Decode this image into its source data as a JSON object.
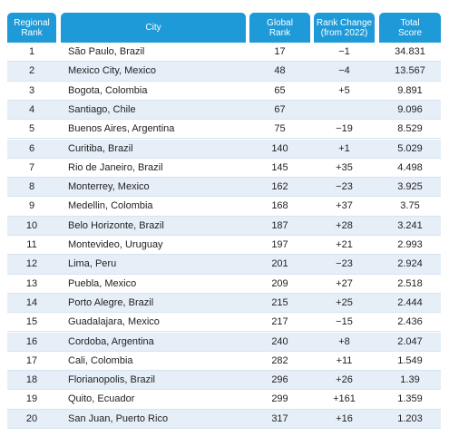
{
  "table": {
    "headers": [
      [
        "Regional",
        "Rank"
      ],
      [
        "City"
      ],
      [
        "Global",
        "Rank"
      ],
      [
        "Rank Change",
        "(from 2022)"
      ],
      [
        "Total",
        "Score"
      ]
    ],
    "rows": [
      [
        1,
        "São Paulo, Brazil",
        17,
        "−1",
        34.831
      ],
      [
        2,
        "Mexico City, Mexico",
        48,
        "−4",
        13.567
      ],
      [
        3,
        "Bogota, Colombia",
        65,
        "+5",
        9.891
      ],
      [
        4,
        "Santiago, Chile",
        67,
        null,
        9.096
      ],
      [
        5,
        "Buenos Aires, Argentina",
        75,
        "−19",
        8.529
      ],
      [
        6,
        "Curitiba, Brazil",
        140,
        "+1",
        5.029
      ],
      [
        7,
        "Rio de Janeiro, Brazil",
        145,
        "+35",
        4.498
      ],
      [
        8,
        "Monterrey, Mexico",
        162,
        "−23",
        3.925
      ],
      [
        9,
        "Medellin, Colombia",
        168,
        "+37",
        3.75
      ],
      [
        10,
        "Belo Horizonte, Brazil",
        187,
        "+28",
        3.241
      ],
      [
        11,
        "Montevideo, Uruguay",
        197,
        "+21",
        2.993
      ],
      [
        12,
        "Lima, Peru",
        201,
        "−23",
        2.924
      ],
      [
        13,
        "Puebla, Mexico",
        209,
        "+27",
        2.518
      ],
      [
        14,
        "Porto Alegre, Brazil",
        215,
        "+25",
        2.444
      ],
      [
        15,
        "Guadalajara, Mexico",
        217,
        "−15",
        2.436
      ],
      [
        16,
        "Cordoba, Argentina",
        240,
        "+8",
        2.047
      ],
      [
        17,
        "Cali, Colombia",
        282,
        "+11",
        1.549
      ],
      [
        18,
        "Florianopolis, Brazil",
        296,
        "+26",
        1.39
      ],
      [
        19,
        "Quito, Ecuador",
        299,
        "+161",
        1.359
      ],
      [
        20,
        "San Juan, Puerto Rico",
        317,
        "+16",
        1.203
      ]
    ]
  }
}
